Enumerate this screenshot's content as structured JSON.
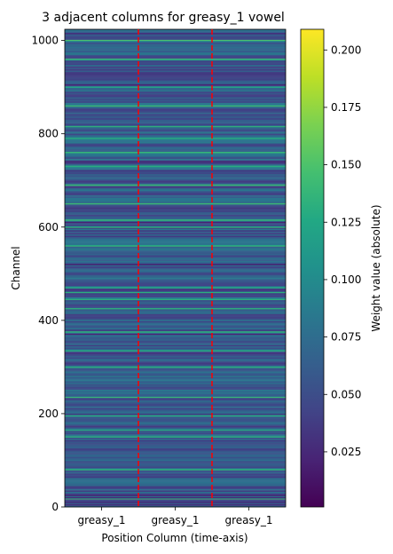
{
  "chart_data": {
    "type": "heatmap",
    "title": "3 adjacent columns for greasy_1 vowel",
    "xlabel": "Position Column (time-axis)",
    "ylabel": "Channel",
    "x_categories": [
      "greasy_1",
      "greasy_1",
      "greasy_1"
    ],
    "column_separators": "red-dashed",
    "ylim": [
      0,
      1024
    ],
    "y_ticks": [
      0,
      200,
      400,
      600,
      800,
      1000
    ],
    "colorbar": {
      "label": "Weight value (absolute)",
      "colormap": "viridis",
      "vmin": 0.001,
      "vmax": 0.209,
      "ticks": [
        0.025,
        0.05,
        0.075,
        0.1,
        0.125,
        0.15,
        0.175,
        0.2
      ],
      "tick_labels": [
        "0.025",
        "0.050",
        "0.075",
        "0.100",
        "0.125",
        "0.150",
        "0.175",
        "0.200"
      ]
    },
    "row_profile_estimate": {
      "channels": 1024,
      "typical_value": 0.06,
      "range_note_values": [
        0.02,
        0.13
      ],
      "notable_bright_rows": [
        18,
        80,
        150,
        165,
        195,
        235,
        300,
        335,
        375,
        425,
        445,
        460,
        470,
        520,
        560,
        600,
        615,
        650,
        690,
        730,
        760,
        790,
        815,
        860,
        900,
        960,
        1000
      ],
      "notable_dark_rows": [
        5,
        10,
        20,
        25,
        330,
        370,
        520,
        610,
        740,
        905,
        1015
      ]
    }
  }
}
